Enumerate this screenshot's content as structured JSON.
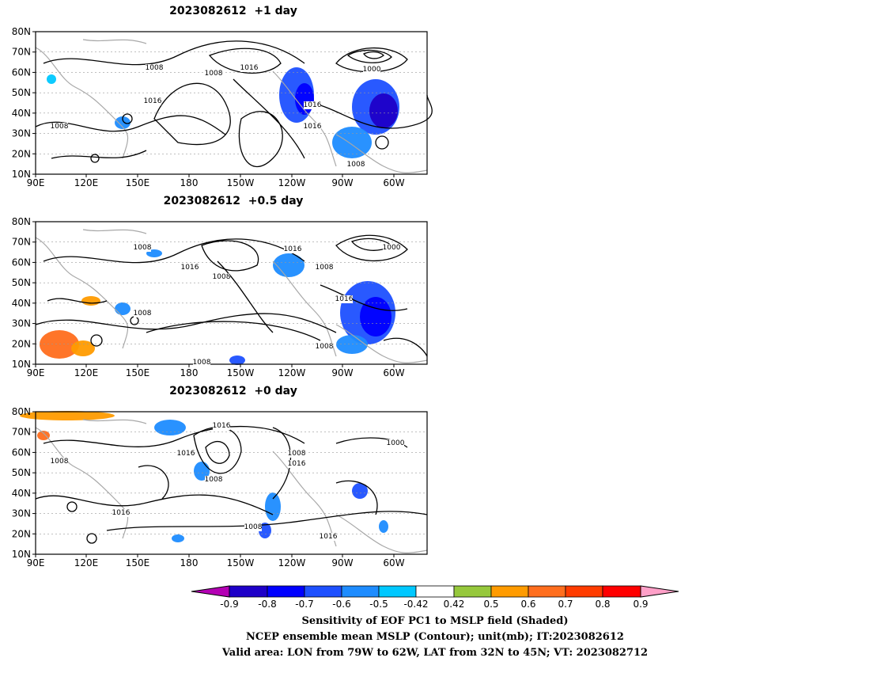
{
  "panels": [
    {
      "title": "2023082612  +1 day",
      "contour_labels": [
        "1008",
        "1016",
        "1008",
        "1016",
        "1008",
        "1016",
        "1016",
        "1000",
        "1008"
      ]
    },
    {
      "title": "2023082612  +0.5 day",
      "contour_labels": [
        "1008",
        "1016",
        "1008",
        "1016",
        "1008",
        "1000",
        "1016",
        "1008",
        "1008",
        "1008"
      ]
    },
    {
      "title": "2023082612  +0 day",
      "contour_labels": [
        "1016",
        "1016",
        "1008",
        "1008",
        "1008",
        "1016",
        "1000",
        "1016",
        "1008",
        "1016"
      ]
    }
  ],
  "lat_labels": [
    "80N",
    "70N",
    "60N",
    "50N",
    "40N",
    "30N",
    "20N",
    "10N"
  ],
  "lon_labels": [
    "90E",
    "120E",
    "150E",
    "180",
    "150W",
    "120W",
    "90W",
    "60W"
  ],
  "colorbar": {
    "labels": [
      "-0.9",
      "-0.8",
      "-0.7",
      "-0.6",
      "-0.5",
      "-0.42",
      "0.42",
      "0.5",
      "0.6",
      "0.7",
      "0.8",
      "0.9"
    ],
    "colors": [
      "#b400b4",
      "#1e00c8",
      "#0000ff",
      "#1e50ff",
      "#1e8cff",
      "#00c8ff",
      "#ffffff",
      "#96c83c",
      "#ff9b00",
      "#ff6e1e",
      "#ff3c00",
      "#ff0000",
      "#ffa0c8"
    ]
  },
  "captions": {
    "line1": "Sensitivity of EOF PC1 to MSLP field (Shaded)",
    "line2": "NCEP ensemble mean MSLP (Contour); unit(mb); IT:2023082612",
    "line3": "Valid area: LON from 79W to 62W, LAT from 32N to 45N; VT: 2023082712"
  }
}
